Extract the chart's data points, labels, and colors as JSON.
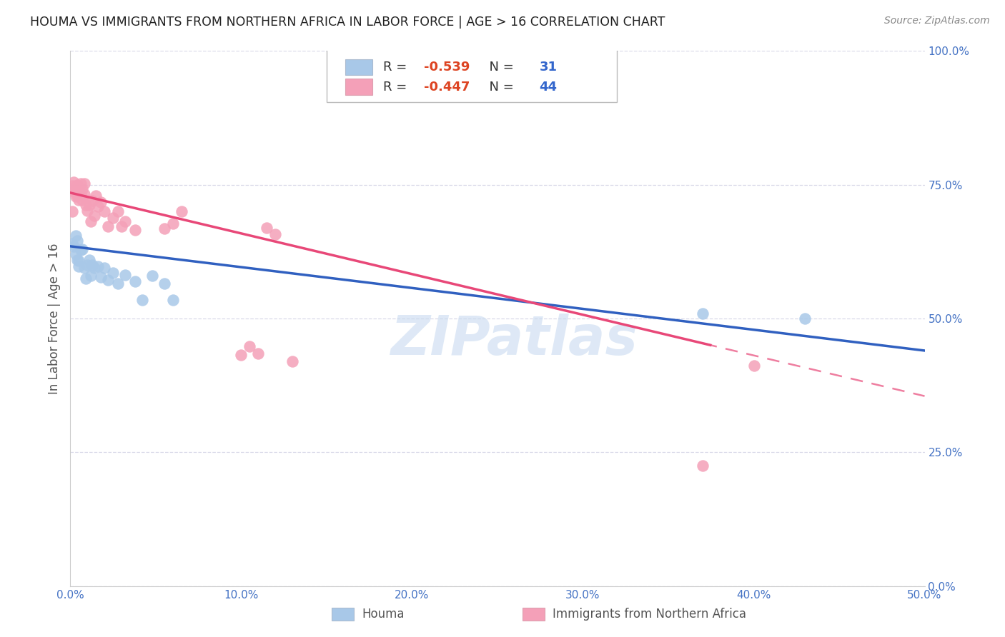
{
  "title": "HOUMA VS IMMIGRANTS FROM NORTHERN AFRICA IN LABOR FORCE | AGE > 16 CORRELATION CHART",
  "source_text": "Source: ZipAtlas.com",
  "ylabel": "In Labor Force | Age > 16",
  "xlim": [
    0.0,
    0.5
  ],
  "ylim": [
    0.0,
    1.0
  ],
  "xticks": [
    0.0,
    0.1,
    0.2,
    0.3,
    0.4,
    0.5
  ],
  "yticks": [
    0.0,
    0.25,
    0.5,
    0.75,
    1.0
  ],
  "xtick_labels": [
    "0.0%",
    "10.0%",
    "20.0%",
    "30.0%",
    "40.0%",
    "50.0%"
  ],
  "ytick_labels": [
    "0.0%",
    "25.0%",
    "50.0%",
    "75.0%",
    "100.0%"
  ],
  "houma_R": -0.539,
  "houma_N": 31,
  "imm_R": -0.447,
  "imm_N": 44,
  "houma_color": "#a8c8e8",
  "imm_color": "#f4a0b8",
  "houma_line_color": "#3060c0",
  "imm_line_color": "#e84878",
  "watermark": "ZIPatlas",
  "watermark_color": "#c8daf0",
  "background_color": "#ffffff",
  "grid_color": "#d8d8e8",
  "houma_x": [
    0.001,
    0.002,
    0.003,
    0.003,
    0.004,
    0.004,
    0.005,
    0.005,
    0.006,
    0.007,
    0.008,
    0.009,
    0.01,
    0.011,
    0.012,
    0.013,
    0.014,
    0.016,
    0.018,
    0.02,
    0.022,
    0.025,
    0.028,
    0.032,
    0.038,
    0.042,
    0.048,
    0.055,
    0.06,
    0.37,
    0.43
  ],
  "houma_y": [
    0.64,
    0.635,
    0.655,
    0.62,
    0.645,
    0.61,
    0.598,
    0.608,
    0.628,
    0.63,
    0.595,
    0.575,
    0.6,
    0.61,
    0.58,
    0.6,
    0.595,
    0.598,
    0.578,
    0.595,
    0.572,
    0.585,
    0.565,
    0.582,
    0.57,
    0.535,
    0.58,
    0.565,
    0.535,
    0.51,
    0.5
  ],
  "imm_x": [
    0.001,
    0.001,
    0.002,
    0.002,
    0.003,
    0.003,
    0.003,
    0.004,
    0.004,
    0.005,
    0.005,
    0.006,
    0.006,
    0.007,
    0.007,
    0.008,
    0.008,
    0.009,
    0.01,
    0.011,
    0.012,
    0.013,
    0.014,
    0.015,
    0.016,
    0.018,
    0.02,
    0.022,
    0.025,
    0.028,
    0.03,
    0.032,
    0.038,
    0.055,
    0.06,
    0.065,
    0.1,
    0.105,
    0.11,
    0.115,
    0.12,
    0.13,
    0.37,
    0.4
  ],
  "imm_y": [
    0.7,
    0.748,
    0.738,
    0.755,
    0.728,
    0.74,
    0.742,
    0.75,
    0.73,
    0.722,
    0.745,
    0.732,
    0.752,
    0.722,
    0.742,
    0.732,
    0.752,
    0.712,
    0.702,
    0.712,
    0.682,
    0.72,
    0.692,
    0.73,
    0.71,
    0.718,
    0.7,
    0.672,
    0.688,
    0.7,
    0.672,
    0.682,
    0.665,
    0.668,
    0.678,
    0.7,
    0.432,
    0.448,
    0.435,
    0.67,
    0.658,
    0.42,
    0.225,
    0.412
  ]
}
